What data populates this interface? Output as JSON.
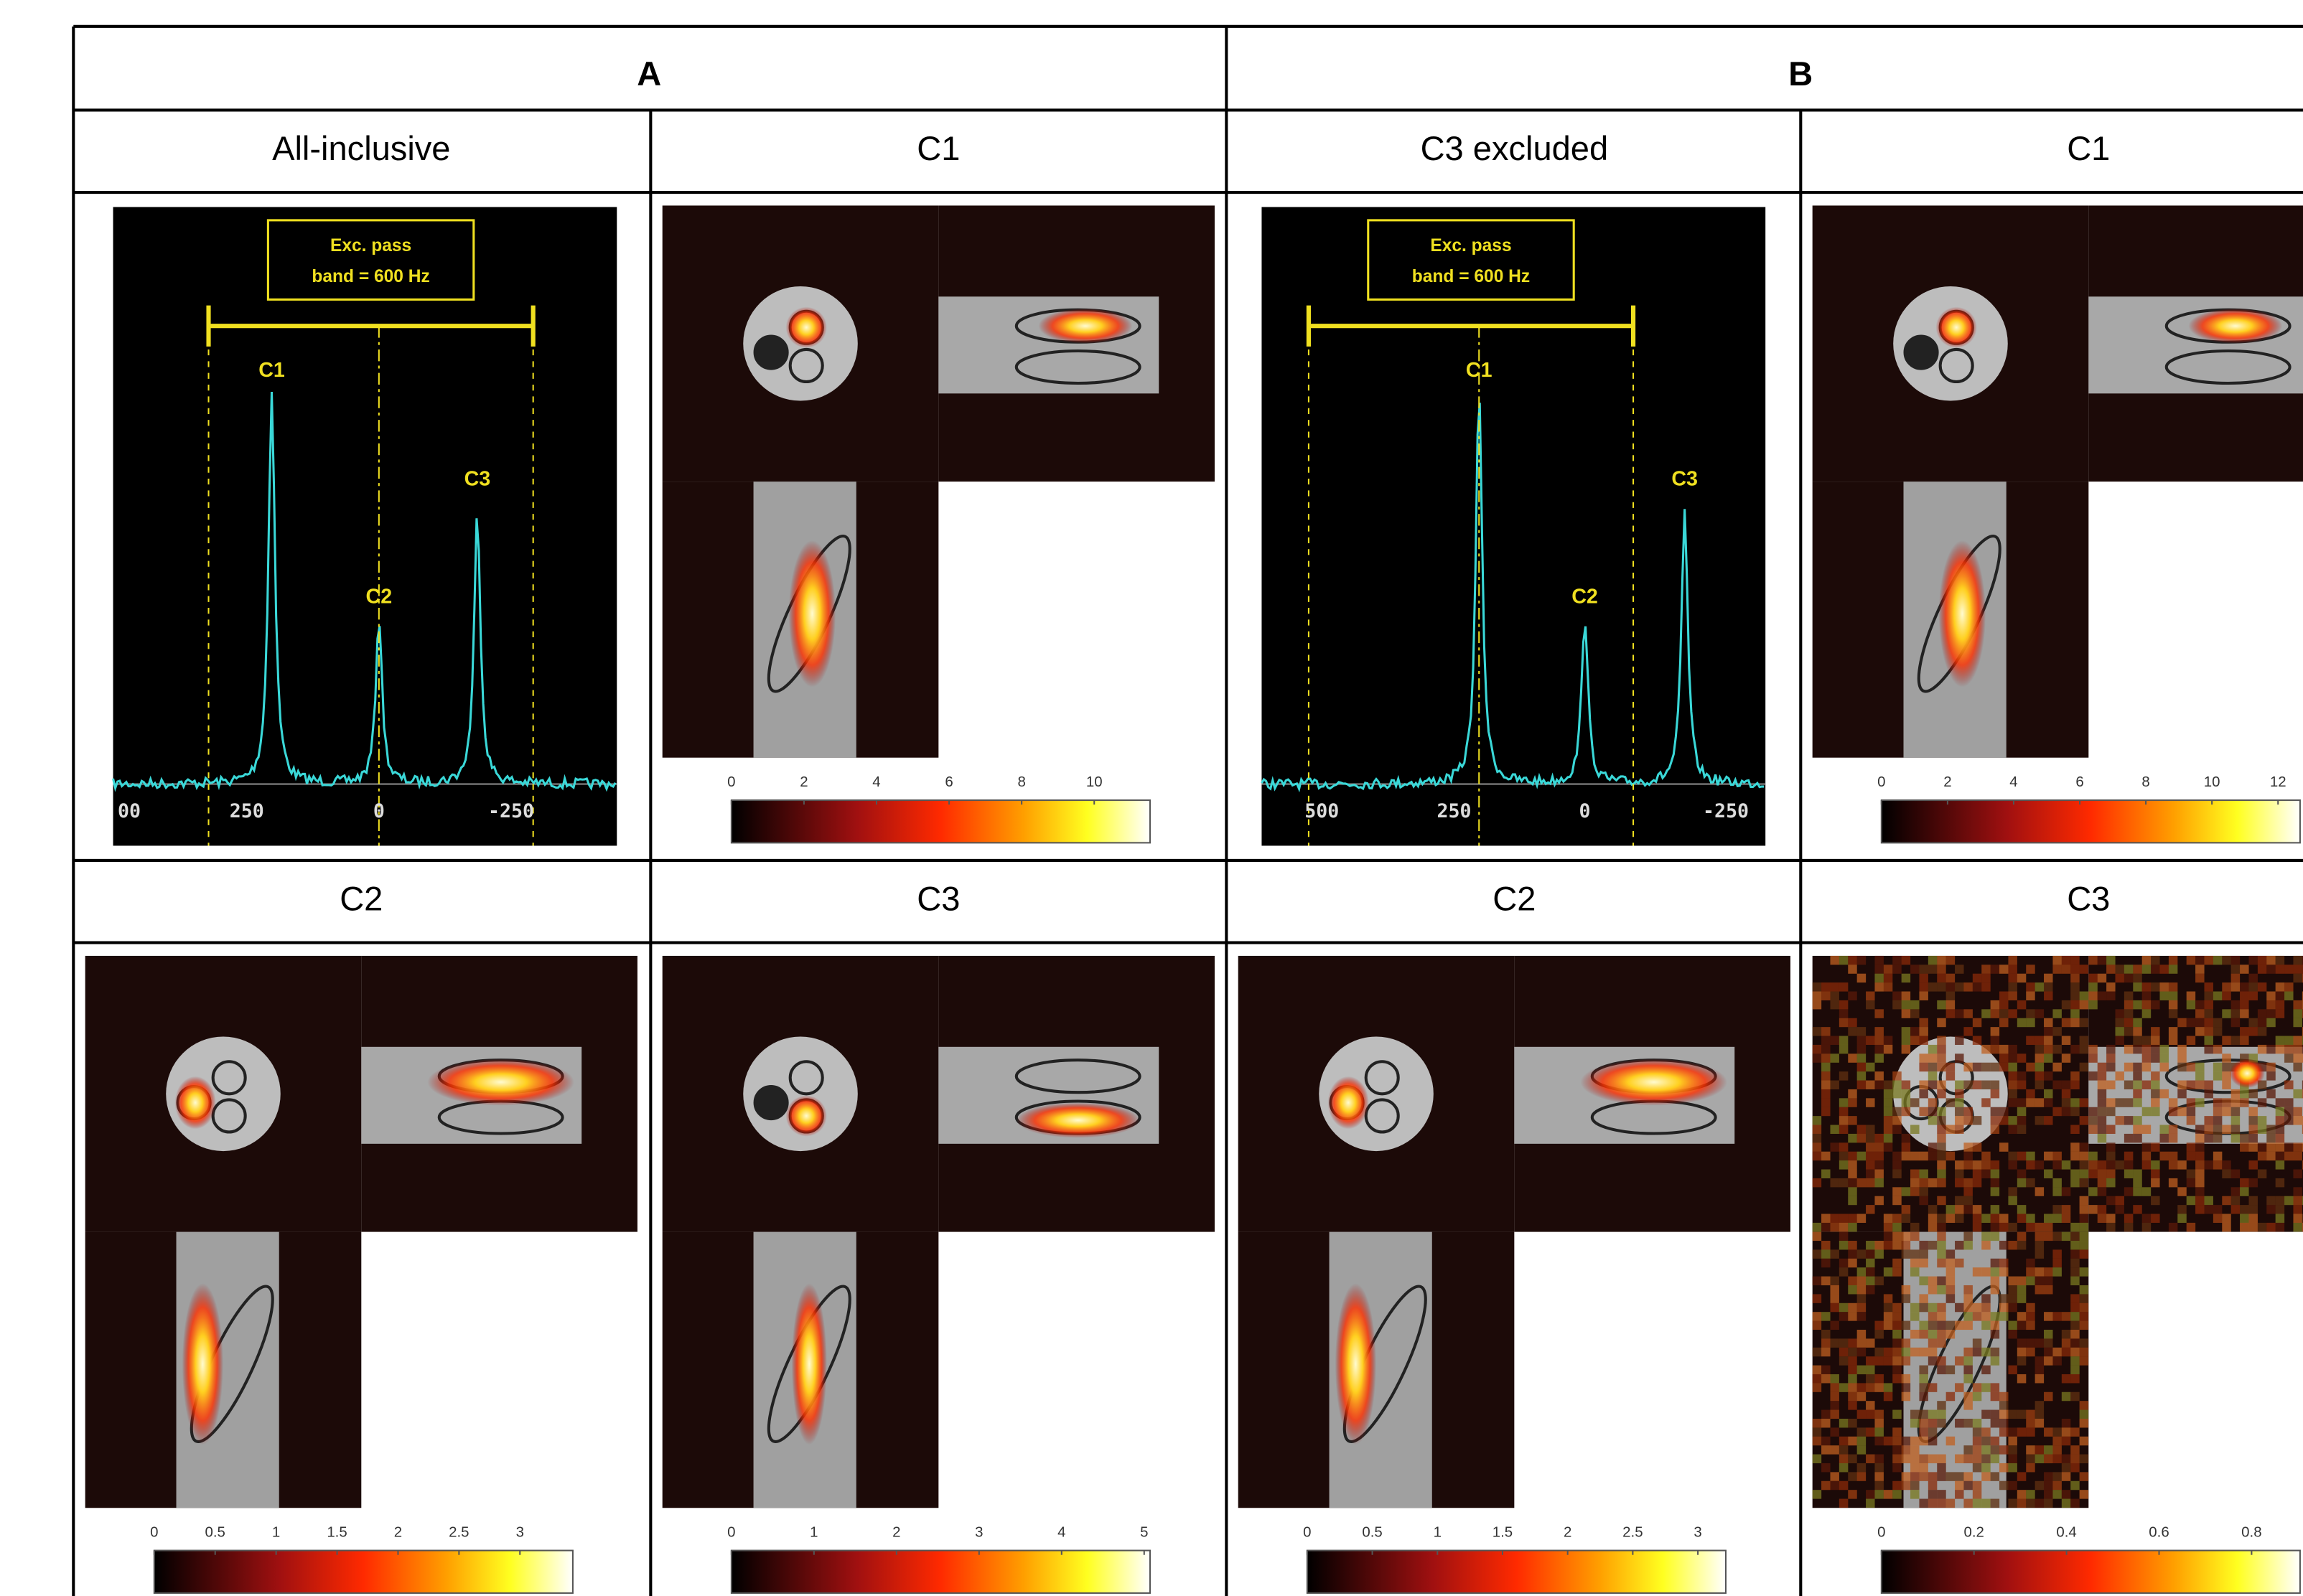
{
  "header": {
    "groups": [
      "A",
      "B"
    ]
  },
  "panels": [
    {
      "title": "All-inclusive",
      "box": [
        "Exc. pass",
        "band = 600 Hz"
      ],
      "peaks": [
        "C1",
        "C2",
        "C3"
      ],
      "axis": [
        "00",
        "250",
        "0",
        "-250"
      ]
    },
    {
      "title": "C1",
      "colorbar": [
        0,
        2,
        4,
        6,
        8,
        10
      ]
    },
    {
      "title": "C3 excluded",
      "box": [
        "Exc. pass",
        "band = 600 Hz"
      ],
      "peaks": [
        "C1",
        "C2",
        "C3"
      ],
      "axis": [
        "500",
        "250",
        "0",
        "-250"
      ]
    },
    {
      "title": "C1",
      "colorbar": [
        0,
        2,
        4,
        6,
        8,
        10,
        12
      ]
    },
    {
      "title": "C2",
      "colorbar": [
        0,
        0.5,
        1,
        1.5,
        2,
        2.5,
        3
      ]
    },
    {
      "title": "C3",
      "colorbar": [
        0,
        1,
        2,
        3,
        4,
        5
      ]
    },
    {
      "title": "C2",
      "colorbar": [
        0,
        0.5,
        1,
        1.5,
        2,
        2.5,
        3
      ]
    },
    {
      "title": "C3",
      "colorbar": [
        0,
        0.2,
        0.4,
        0.6,
        0.8
      ]
    }
  ]
}
